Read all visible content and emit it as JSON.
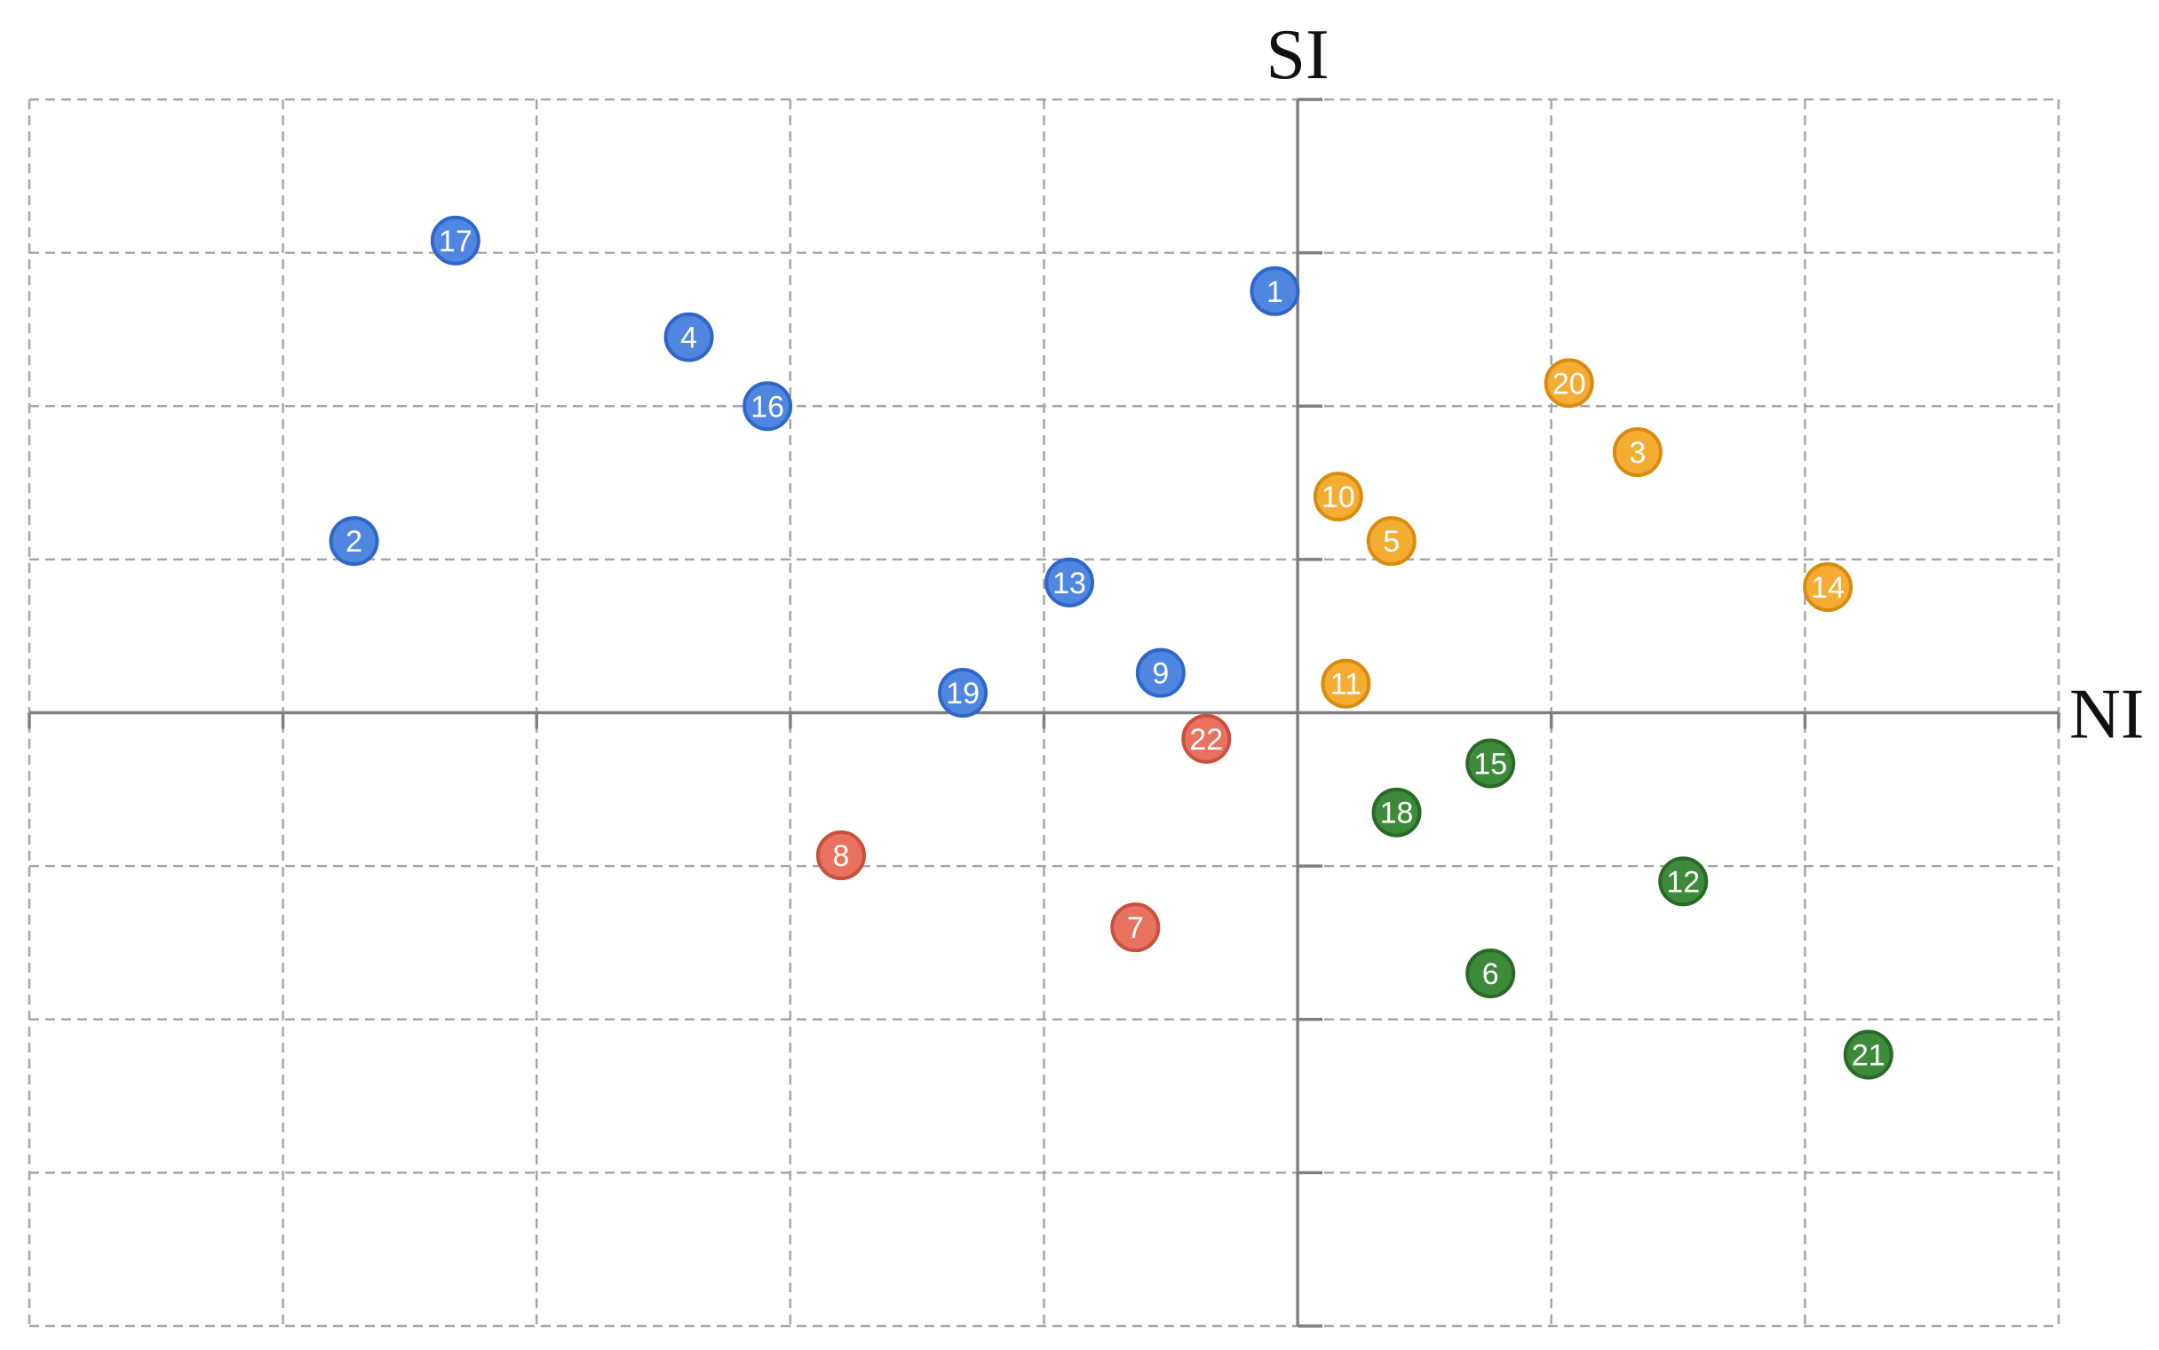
{
  "chart_data": {
    "type": "scatter",
    "title": "",
    "xlabel": "NI",
    "ylabel": "SI",
    "xlim": [
      -5,
      3
    ],
    "ylim": [
      -4,
      4
    ],
    "grid": true,
    "legend": "none",
    "groups": [
      {
        "id": "blue",
        "color": "#4f86e0",
        "stroke": "#2f66c8"
      },
      {
        "id": "orange",
        "color": "#f5ac32",
        "stroke": "#d98b10"
      },
      {
        "id": "red",
        "color": "#e8725e",
        "stroke": "#c9503c"
      },
      {
        "id": "green",
        "color": "#3d8a3b",
        "stroke": "#2a6a28"
      }
    ],
    "points": [
      {
        "label": "1",
        "x": -0.09,
        "y": 2.75,
        "group": "blue"
      },
      {
        "label": "2",
        "x": -3.72,
        "y": 1.12,
        "group": "blue"
      },
      {
        "label": "3",
        "x": 1.34,
        "y": 1.7,
        "group": "orange"
      },
      {
        "label": "4",
        "x": -2.4,
        "y": 2.45,
        "group": "blue"
      },
      {
        "label": "5",
        "x": 0.37,
        "y": 1.12,
        "group": "orange"
      },
      {
        "label": "6",
        "x": 0.76,
        "y": -1.7,
        "group": "green"
      },
      {
        "label": "7",
        "x": -0.64,
        "y": -1.4,
        "group": "red"
      },
      {
        "label": "8",
        "x": -1.8,
        "y": -0.93,
        "group": "red"
      },
      {
        "label": "9",
        "x": -0.54,
        "y": 0.26,
        "group": "blue"
      },
      {
        "label": "10",
        "x": 0.16,
        "y": 1.41,
        "group": "orange"
      },
      {
        "label": "11",
        "x": 0.19,
        "y": 0.19,
        "group": "orange"
      },
      {
        "label": "12",
        "x": 1.52,
        "y": -1.1,
        "group": "green"
      },
      {
        "label": "13",
        "x": -0.9,
        "y": 0.85,
        "group": "blue"
      },
      {
        "label": "14",
        "x": 2.09,
        "y": 0.82,
        "group": "orange"
      },
      {
        "label": "15",
        "x": 0.76,
        "y": -0.33,
        "group": "green"
      },
      {
        "label": "16",
        "x": -2.09,
        "y": 2.0,
        "group": "blue"
      },
      {
        "label": "17",
        "x": -3.32,
        "y": 3.08,
        "group": "blue"
      },
      {
        "label": "18",
        "x": 0.39,
        "y": -0.65,
        "group": "green"
      },
      {
        "label": "19",
        "x": -1.32,
        "y": 0.13,
        "group": "blue"
      },
      {
        "label": "20",
        "x": 1.07,
        "y": 2.15,
        "group": "orange"
      },
      {
        "label": "21",
        "x": 2.25,
        "y": -2.23,
        "group": "green"
      },
      {
        "label": "22",
        "x": -0.36,
        "y": -0.17,
        "group": "red"
      }
    ]
  }
}
